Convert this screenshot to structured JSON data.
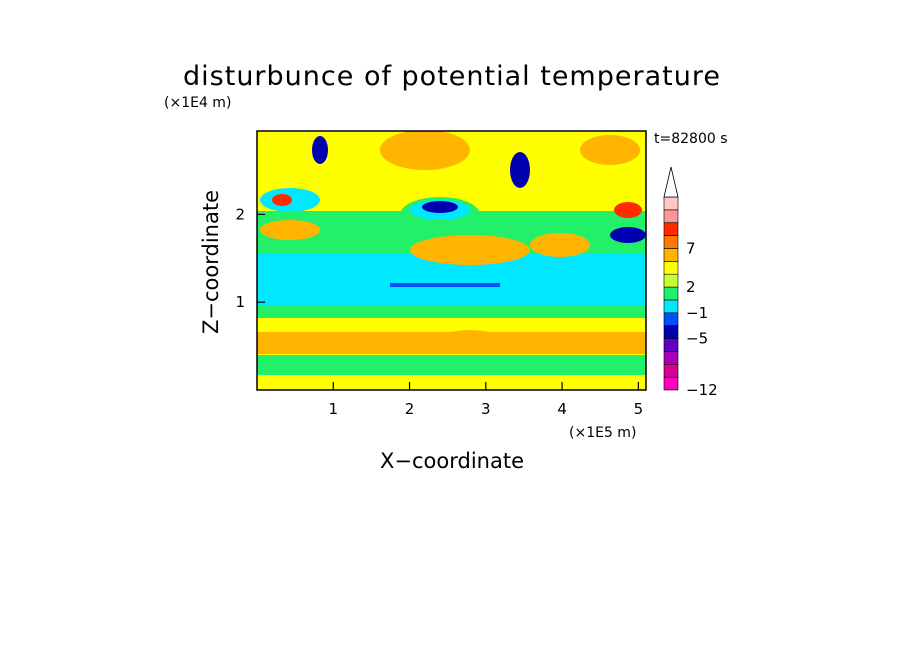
{
  "chart_data": {
    "type": "heatmap",
    "title": "disturbunce of potential temperature",
    "time_label": "t=82800 s",
    "xlabel": "X−coordinate",
    "ylabel": "Z−coordinate",
    "x_unit": "(×1E5 m)",
    "y_unit": "(×1E4 m)",
    "xlim": [
      0,
      5.1
    ],
    "ylim": [
      0,
      2.95
    ],
    "x_ticks": [
      {
        "value": 1,
        "label": "1"
      },
      {
        "value": 2,
        "label": "2"
      },
      {
        "value": 3,
        "label": "3"
      },
      {
        "value": 4,
        "label": "4"
      },
      {
        "value": 5,
        "label": "5"
      }
    ],
    "y_ticks": [
      {
        "value": 1,
        "label": "1"
      },
      {
        "value": 2,
        "label": "2"
      }
    ],
    "colorbar": {
      "levels": [
        {
          "color": "#ff00c0",
          "label": "−12"
        },
        {
          "color": "#d80098",
          "label": ""
        },
        {
          "color": "#a800b8",
          "label": ""
        },
        {
          "color": "#6000c8",
          "label": ""
        },
        {
          "color": "#0000b0",
          "label": "−5"
        },
        {
          "color": "#0050f8",
          "label": ""
        },
        {
          "color": "#00e8ff",
          "label": "−1"
        },
        {
          "color": "#22f068",
          "label": ""
        },
        {
          "color": "#c8ff30",
          "label": "2"
        },
        {
          "color": "#ffff00",
          "label": ""
        },
        {
          "color": "#ffb400",
          "label": ""
        },
        {
          "color": "#ff7800",
          "label": "7"
        },
        {
          "color": "#ff2a00",
          "label": ""
        },
        {
          "color": "#ff9696",
          "label": ""
        },
        {
          "color": "#ffc8c8",
          "label": ""
        }
      ],
      "extend": "max"
    },
    "grid": false
  }
}
